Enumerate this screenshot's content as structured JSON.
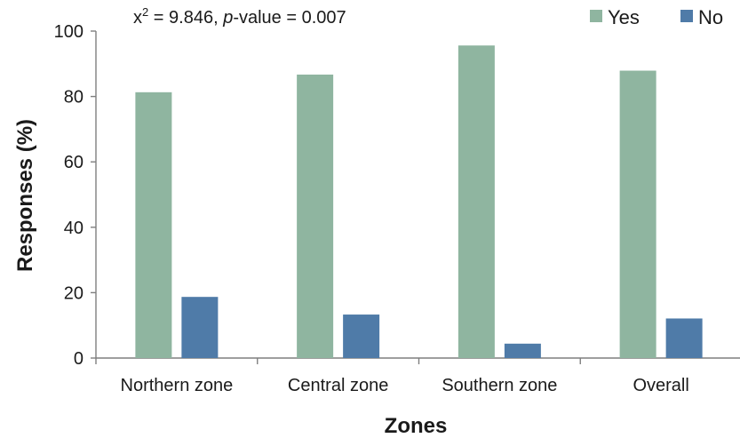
{
  "chart_data": {
    "type": "bar",
    "title": "",
    "annotation": {
      "prefix": "x",
      "superscript": "2",
      "middle": " = 9.846, ",
      "italic": "p",
      "suffix": "-value = 0.007"
    },
    "categories": [
      "Northern zone",
      "Central zone",
      "Southern zone",
      "Overall"
    ],
    "series": [
      {
        "name": "Yes",
        "color": "#8fb5a0",
        "values": [
          81.3,
          86.7,
          95.6,
          87.9
        ]
      },
      {
        "name": "No",
        "color": "#4f7ba8",
        "values": [
          18.7,
          13.3,
          4.4,
          12.1
        ]
      }
    ],
    "xlabel": "Zones",
    "ylabel": "Responses (%)",
    "ylim": [
      0,
      100
    ],
    "yticks": [
      "0",
      "20",
      "40",
      "60",
      "80",
      "100"
    ],
    "grid": false,
    "legend_position": "top-right"
  }
}
